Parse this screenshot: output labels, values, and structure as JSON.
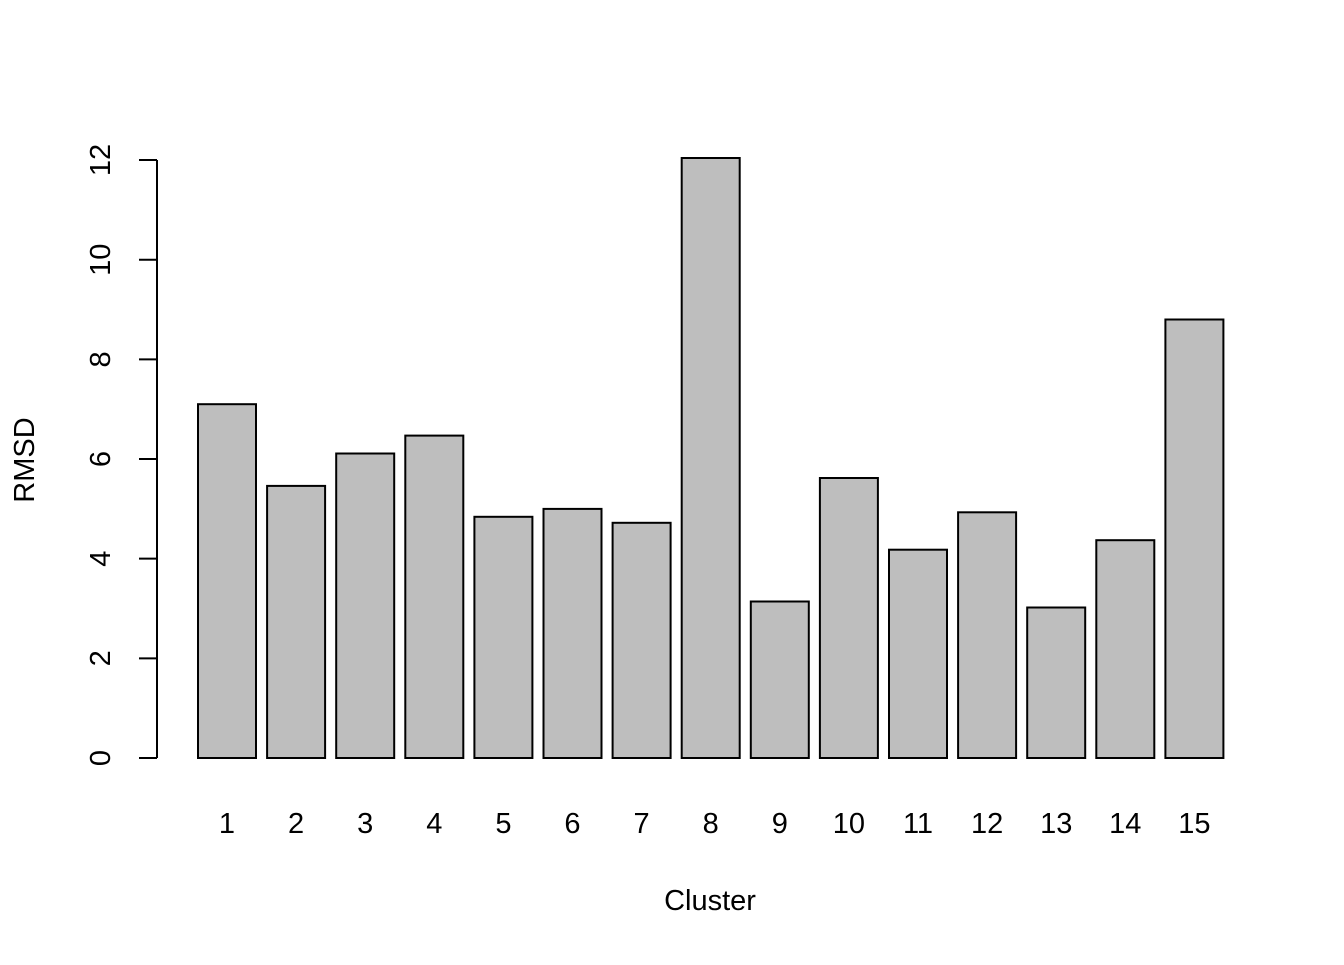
{
  "chart_data": {
    "type": "bar",
    "title": "",
    "xlabel": "Cluster",
    "ylabel": "RMSD",
    "categories": [
      "1",
      "2",
      "3",
      "4",
      "5",
      "6",
      "7",
      "8",
      "9",
      "10",
      "11",
      "12",
      "13",
      "14",
      "15"
    ],
    "values": [
      7.1,
      5.46,
      6.11,
      6.47,
      4.84,
      5.0,
      4.72,
      12.04,
      3.14,
      5.62,
      4.18,
      4.93,
      3.02,
      4.37,
      8.8
    ],
    "ylim": [
      0,
      12
    ],
    "yticks": [
      0,
      2,
      4,
      6,
      8,
      10,
      12
    ],
    "grid": false,
    "legend": "none",
    "colors": {
      "bar_fill": "#bebebe",
      "bar_stroke": "#000000",
      "axis": "#000000",
      "background": "#ffffff"
    }
  }
}
